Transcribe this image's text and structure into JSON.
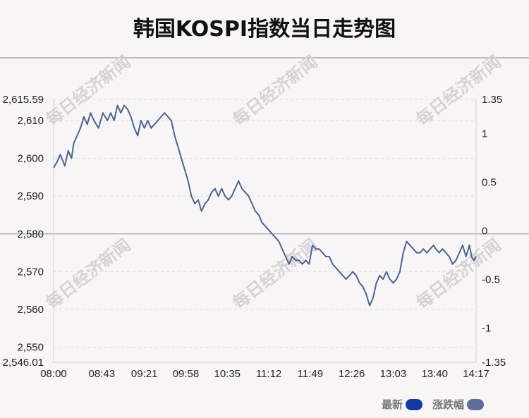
{
  "title": "韩国KOSPI指数当日走势图",
  "watermark": "每日经济新闻",
  "legend": [
    {
      "label": "最新",
      "color": "#1738a3"
    },
    {
      "label": "涨跌幅",
      "color": "#5b6f9a"
    }
  ],
  "chart_data": {
    "type": "line",
    "line_color": "#4c6490",
    "grid": "dashed-horizontal",
    "zero_line_at_left": 2580,
    "y_left": {
      "ylim": [
        2546.01,
        2615.59
      ],
      "tick_values": [
        2546.01,
        2550,
        2560,
        2570,
        2580,
        2590,
        2600,
        2610,
        2615.59
      ],
      "tick_labels": [
        "2,546.01",
        "2,550",
        "2,560",
        "2,570",
        "2,580",
        "2,590",
        "2,600",
        "2,610",
        "2,615.59"
      ]
    },
    "y_right": {
      "ylim": [
        -1.35,
        1.35
      ],
      "tick_values": [
        -1.35,
        -1,
        -0.5,
        0,
        0.5,
        1,
        1.35
      ],
      "tick_labels": [
        "-1.35",
        "-1",
        "-0.5",
        "0",
        "0.5",
        "1",
        "1.35"
      ]
    },
    "x_ticks": [
      "08:00",
      "08:43",
      "09:21",
      "09:58",
      "10:35",
      "11:12",
      "11:49",
      "12:26",
      "13:03",
      "13:40",
      "14:17"
    ],
    "x_minutes": [
      0,
      43,
      81,
      118,
      155,
      192,
      229,
      266,
      303,
      340,
      377
    ],
    "series": [
      {
        "x": [
          0,
          3,
          6,
          10,
          13,
          16,
          18,
          21,
          24,
          27,
          30,
          33,
          36,
          40,
          44,
          48,
          51,
          54,
          57,
          60,
          63,
          66,
          69,
          72,
          75,
          78,
          81,
          84,
          87,
          90,
          93,
          96,
          99,
          102,
          105,
          108,
          111,
          114,
          117,
          120,
          123,
          126,
          129,
          132,
          135,
          138,
          141,
          144,
          147,
          150,
          153,
          156,
          159,
          162,
          165,
          168,
          171,
          174,
          177,
          180,
          183,
          186,
          189,
          192,
          195,
          198,
          201,
          204,
          207,
          210,
          213,
          216,
          219,
          222,
          225,
          228,
          231,
          234,
          237,
          240,
          243,
          246,
          249,
          252,
          255,
          258,
          261,
          264,
          267,
          270,
          273,
          276,
          279,
          282,
          285,
          288,
          291,
          294,
          297,
          300,
          303,
          306,
          309,
          312,
          315,
          318,
          321,
          324,
          327,
          330,
          333,
          336,
          339,
          341,
          344,
          347,
          350,
          353,
          356,
          359,
          362,
          365,
          368,
          371,
          373,
          375,
          377
        ],
        "values": [
          2597.5,
          2599,
          2601,
          2598,
          2602,
          2600,
          2604,
          2606,
          2608,
          2611,
          2609,
          2612,
          2610,
          2608,
          2612,
          2610,
          2612,
          2610,
          2614,
          2612,
          2614,
          2613,
          2611,
          2608,
          2606,
          2610,
          2608,
          2610,
          2608,
          2609,
          2610,
          2611,
          2612,
          2611,
          2610,
          2606,
          2603,
          2600,
          2597,
          2594,
          2590,
          2588,
          2589,
          2586,
          2588,
          2589,
          2591,
          2592,
          2590,
          2592,
          2590,
          2589,
          2590,
          2592,
          2594,
          2592,
          2591,
          2590,
          2588,
          2586,
          2585,
          2583,
          2582,
          2581,
          2580,
          2579,
          2578,
          2576,
          2574,
          2572,
          2574,
          2573,
          2573,
          2572,
          2573,
          2572,
          2577,
          2576,
          2576,
          2575,
          2574,
          2574,
          2572,
          2571,
          2570,
          2569,
          2568,
          2569,
          2570,
          2569,
          2567,
          2566,
          2564,
          2561,
          2563,
          2567,
          2569,
          2568,
          2570,
          2568,
          2567,
          2568,
          2570,
          2575,
          2578,
          2577,
          2576,
          2575,
          2575,
          2576,
          2575,
          2576,
          2577,
          2576,
          2575,
          2576,
          2575,
          2574,
          2572,
          2573,
          2575,
          2577,
          2574,
          2577,
          2574,
          2573,
          2574
        ],
        "label_values_note": ""
      }
    ]
  }
}
